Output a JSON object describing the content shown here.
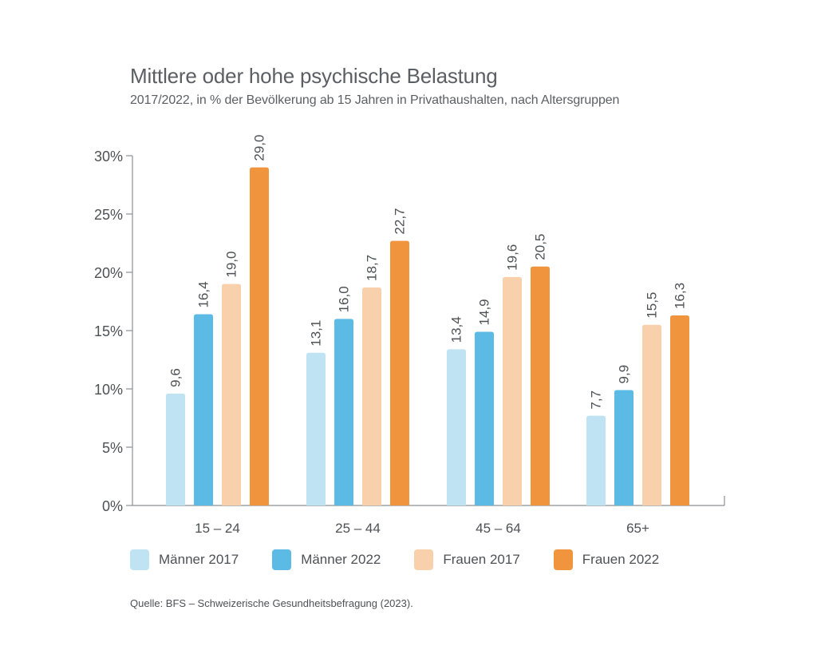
{
  "chart_data": {
    "type": "bar",
    "title": "Mittlere oder hohe psychische Belastung",
    "subtitle": "2017/2022, in % der Bevölkerung ab 15 Jahren in Privathaushalten, nach Altersgruppen",
    "categories": [
      "15 – 24",
      "25 – 44",
      "45 – 64",
      "65+"
    ],
    "series": [
      {
        "name": "Männer 2017",
        "color": "#bfe3f2",
        "values": [
          9.6,
          13.1,
          13.4,
          7.7
        ],
        "labels": [
          "9,6",
          "13,1",
          "13,4",
          "7,7"
        ]
      },
      {
        "name": "Männer 2022",
        "color": "#5bbbe5",
        "values": [
          16.4,
          16.0,
          14.9,
          9.9
        ],
        "labels": [
          "16,4",
          "16,0",
          "14,9",
          "9,9"
        ]
      },
      {
        "name": "Frauen 2017",
        "color": "#f8d0ab",
        "values": [
          19.0,
          18.7,
          19.6,
          15.5
        ],
        "labels": [
          "19,0",
          "18,7",
          "19,6",
          "15,5"
        ]
      },
      {
        "name": "Frauen 2022",
        "color": "#f0953d",
        "values": [
          29.0,
          22.7,
          20.5,
          16.3
        ],
        "labels": [
          "29,0",
          "22,7",
          "20,5",
          "16,3"
        ]
      }
    ],
    "yticks": [
      0,
      5,
      10,
      15,
      20,
      25,
      30
    ],
    "ytick_labels": [
      "0%",
      "5%",
      "10%",
      "15%",
      "20%",
      "25%",
      "30%"
    ],
    "ylim": [
      0,
      30
    ],
    "xlabel": "",
    "ylabel": "",
    "grid": false,
    "legend_position": "bottom"
  },
  "source": "Quelle: BFS – Schweizerische Gesundheitsbefragung (2023)."
}
